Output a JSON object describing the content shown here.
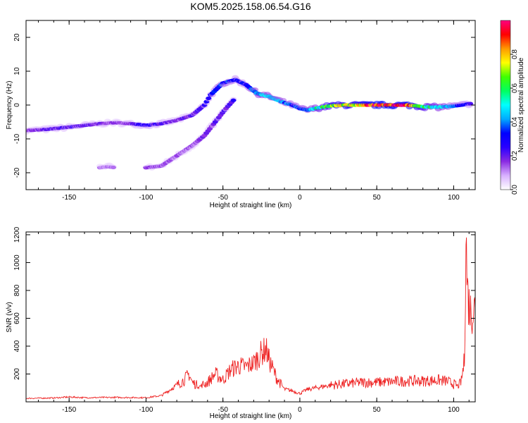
{
  "figure": {
    "title": "KOM5.2025.158.06.54.G16"
  },
  "chart_data": [
    {
      "type": "heatmap",
      "panel": "spectrogram",
      "xlabel": "Height of straight line (km)",
      "ylabel": "Frequency (Hz)",
      "xlim": [
        -178,
        114
      ],
      "ylim": [
        -25,
        25
      ],
      "xticks": [
        -150,
        -100,
        -50,
        0,
        50,
        100
      ],
      "yticks": [
        -20,
        -10,
        0,
        10,
        20
      ],
      "colorbar": {
        "label": "Normalized spectral amplitude",
        "range": [
          0,
          1
        ],
        "ticks": [
          0.0,
          0.2,
          0.4,
          0.6,
          0.8
        ],
        "tick_labels": [
          "0.0",
          "0.2",
          "0.4",
          "0.6",
          "0.8"
        ],
        "colormap": [
          "#ffffff",
          "#d8b0ff",
          "#8a2be2",
          "#2a00ff",
          "#0000ff",
          "#00aaff",
          "#00ffff",
          "#00ff60",
          "#40ff00",
          "#ffff00",
          "#ff9900",
          "#ff0000",
          "#ff0080"
        ]
      },
      "traces": [
        {
          "name": "main-track",
          "points": [
            [
              -178,
              -7.5
            ],
            [
              -165,
              -7.2
            ],
            [
              -150,
              -6.5
            ],
            [
              -140,
              -6
            ],
            [
              -130,
              -5.5
            ],
            [
              -120,
              -5.2
            ],
            [
              -110,
              -5.5
            ],
            [
              -100,
              -6
            ],
            [
              -90,
              -5.5
            ],
            [
              -80,
              -4.5
            ],
            [
              -70,
              -3
            ],
            [
              -62,
              0
            ],
            [
              -58,
              3
            ],
            [
              -50,
              6.5
            ],
            [
              -42,
              7.5
            ],
            [
              -35,
              6
            ],
            [
              -28,
              3.5
            ],
            [
              -20,
              2.5
            ],
            [
              -12,
              1
            ],
            [
              -5,
              0
            ],
            [
              0,
              -1
            ],
            [
              5,
              -1.5
            ],
            [
              10,
              -1
            ],
            [
              20,
              -0.2
            ],
            [
              30,
              0
            ],
            [
              40,
              0
            ],
            [
              50,
              0
            ],
            [
              60,
              0
            ],
            [
              70,
              0
            ],
            [
              80,
              -0.5
            ],
            [
              90,
              -0.6
            ],
            [
              100,
              -0.3
            ],
            [
              105,
              0
            ],
            [
              112,
              0.5
            ]
          ],
          "amplitude": [
            0.15,
            0.2,
            0.22,
            0.2,
            0.18,
            0.15,
            0.18,
            0.25,
            0.2,
            0.18,
            0.2,
            0.25,
            0.3,
            0.35,
            0.3,
            0.3,
            0.45,
            0.45,
            0.4,
            0.35,
            0.35,
            0.4,
            0.5,
            0.7,
            0.75,
            0.8,
            0.95,
            0.95,
            0.9,
            0.6,
            0.5,
            0.35,
            0.3,
            0.25
          ]
        },
        {
          "name": "lower-branch",
          "points": [
            [
              -100,
              -18.5
            ],
            [
              -90,
              -18
            ],
            [
              -80,
              -15
            ],
            [
              -70,
              -12
            ],
            [
              -62,
              -9
            ],
            [
              -55,
              -5
            ],
            [
              -48,
              -1
            ],
            [
              -42,
              2
            ]
          ],
          "amplitude": [
            0.15,
            0.15,
            0.15,
            0.15,
            0.18,
            0.2,
            0.2,
            0.25
          ]
        },
        {
          "name": "faint-cluster",
          "points": [
            [
              -130,
              -18.5
            ],
            [
              -125,
              -18.2
            ],
            [
              -120,
              -18.5
            ]
          ],
          "amplitude": [
            0.12,
            0.12,
            0.12
          ]
        }
      ]
    },
    {
      "type": "line",
      "panel": "snr",
      "xlabel": "Height of straight line (km)",
      "ylabel": "SNR (v/v)",
      "xlim": [
        -178,
        114
      ],
      "ylim": [
        0,
        1220
      ],
      "xticks": [
        -150,
        -100,
        -50,
        0,
        50,
        100
      ],
      "yticks": [
        200,
        400,
        600,
        800,
        1000,
        1200
      ],
      "color": "#ee2222",
      "series": [
        {
          "x": [
            -178,
            -160,
            -150,
            -140,
            -120,
            -100,
            -90,
            -80,
            -75,
            -72,
            -70,
            -65,
            -60,
            -55,
            -50,
            -45,
            -40,
            -35,
            -30,
            -25,
            -22,
            -20,
            -15,
            -10,
            -5,
            0,
            5,
            10,
            20,
            30,
            40,
            50,
            60,
            70,
            80,
            90,
            95,
            100,
            103,
            105,
            107,
            108,
            109,
            110,
            111,
            112,
            114
          ],
          "y": [
            25,
            28,
            35,
            30,
            32,
            30,
            45,
            120,
            160,
            200,
            140,
            110,
            140,
            200,
            160,
            230,
            260,
            250,
            280,
            350,
            380,
            300,
            170,
            90,
            80,
            60,
            90,
            100,
            120,
            130,
            140,
            140,
            145,
            150,
            150,
            155,
            150,
            130,
            110,
            150,
            300,
            1200,
            800,
            700,
            650,
            660,
            670
          ]
        }
      ]
    }
  ]
}
